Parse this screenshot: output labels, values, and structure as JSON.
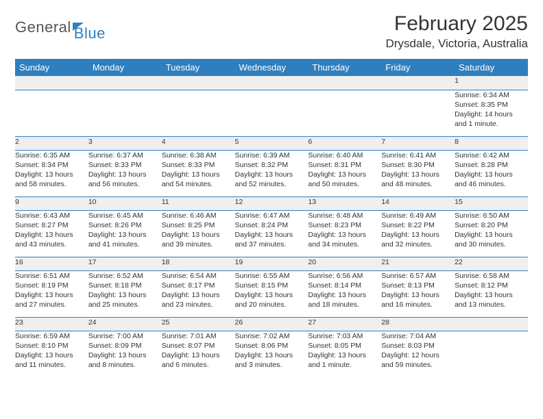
{
  "logo": {
    "part1": "General",
    "part2": "Blue"
  },
  "title": "February 2025",
  "location": "Drysdale, Victoria, Australia",
  "colors": {
    "header_bg": "#2f7fbf",
    "header_text": "#ffffff",
    "daynum_bg": "#efefef",
    "border": "#2f7fbf",
    "page_bg": "#ffffff",
    "text": "#333333"
  },
  "day_headers": [
    "Sunday",
    "Monday",
    "Tuesday",
    "Wednesday",
    "Thursday",
    "Friday",
    "Saturday"
  ],
  "weeks": [
    [
      {
        "num": "",
        "lines": []
      },
      {
        "num": "",
        "lines": []
      },
      {
        "num": "",
        "lines": []
      },
      {
        "num": "",
        "lines": []
      },
      {
        "num": "",
        "lines": []
      },
      {
        "num": "",
        "lines": []
      },
      {
        "num": "1",
        "lines": [
          "Sunrise: 6:34 AM",
          "Sunset: 8:35 PM",
          "Daylight: 14 hours",
          "and 1 minute."
        ]
      }
    ],
    [
      {
        "num": "2",
        "lines": [
          "Sunrise: 6:35 AM",
          "Sunset: 8:34 PM",
          "Daylight: 13 hours",
          "and 58 minutes."
        ]
      },
      {
        "num": "3",
        "lines": [
          "Sunrise: 6:37 AM",
          "Sunset: 8:33 PM",
          "Daylight: 13 hours",
          "and 56 minutes."
        ]
      },
      {
        "num": "4",
        "lines": [
          "Sunrise: 6:38 AM",
          "Sunset: 8:33 PM",
          "Daylight: 13 hours",
          "and 54 minutes."
        ]
      },
      {
        "num": "5",
        "lines": [
          "Sunrise: 6:39 AM",
          "Sunset: 8:32 PM",
          "Daylight: 13 hours",
          "and 52 minutes."
        ]
      },
      {
        "num": "6",
        "lines": [
          "Sunrise: 6:40 AM",
          "Sunset: 8:31 PM",
          "Daylight: 13 hours",
          "and 50 minutes."
        ]
      },
      {
        "num": "7",
        "lines": [
          "Sunrise: 6:41 AM",
          "Sunset: 8:30 PM",
          "Daylight: 13 hours",
          "and 48 minutes."
        ]
      },
      {
        "num": "8",
        "lines": [
          "Sunrise: 6:42 AM",
          "Sunset: 8:28 PM",
          "Daylight: 13 hours",
          "and 46 minutes."
        ]
      }
    ],
    [
      {
        "num": "9",
        "lines": [
          "Sunrise: 6:43 AM",
          "Sunset: 8:27 PM",
          "Daylight: 13 hours",
          "and 43 minutes."
        ]
      },
      {
        "num": "10",
        "lines": [
          "Sunrise: 6:45 AM",
          "Sunset: 8:26 PM",
          "Daylight: 13 hours",
          "and 41 minutes."
        ]
      },
      {
        "num": "11",
        "lines": [
          "Sunrise: 6:46 AM",
          "Sunset: 8:25 PM",
          "Daylight: 13 hours",
          "and 39 minutes."
        ]
      },
      {
        "num": "12",
        "lines": [
          "Sunrise: 6:47 AM",
          "Sunset: 8:24 PM",
          "Daylight: 13 hours",
          "and 37 minutes."
        ]
      },
      {
        "num": "13",
        "lines": [
          "Sunrise: 6:48 AM",
          "Sunset: 8:23 PM",
          "Daylight: 13 hours",
          "and 34 minutes."
        ]
      },
      {
        "num": "14",
        "lines": [
          "Sunrise: 6:49 AM",
          "Sunset: 8:22 PM",
          "Daylight: 13 hours",
          "and 32 minutes."
        ]
      },
      {
        "num": "15",
        "lines": [
          "Sunrise: 6:50 AM",
          "Sunset: 8:20 PM",
          "Daylight: 13 hours",
          "and 30 minutes."
        ]
      }
    ],
    [
      {
        "num": "16",
        "lines": [
          "Sunrise: 6:51 AM",
          "Sunset: 8:19 PM",
          "Daylight: 13 hours",
          "and 27 minutes."
        ]
      },
      {
        "num": "17",
        "lines": [
          "Sunrise: 6:52 AM",
          "Sunset: 8:18 PM",
          "Daylight: 13 hours",
          "and 25 minutes."
        ]
      },
      {
        "num": "18",
        "lines": [
          "Sunrise: 6:54 AM",
          "Sunset: 8:17 PM",
          "Daylight: 13 hours",
          "and 23 minutes."
        ]
      },
      {
        "num": "19",
        "lines": [
          "Sunrise: 6:55 AM",
          "Sunset: 8:15 PM",
          "Daylight: 13 hours",
          "and 20 minutes."
        ]
      },
      {
        "num": "20",
        "lines": [
          "Sunrise: 6:56 AM",
          "Sunset: 8:14 PM",
          "Daylight: 13 hours",
          "and 18 minutes."
        ]
      },
      {
        "num": "21",
        "lines": [
          "Sunrise: 6:57 AM",
          "Sunset: 8:13 PM",
          "Daylight: 13 hours",
          "and 16 minutes."
        ]
      },
      {
        "num": "22",
        "lines": [
          "Sunrise: 6:58 AM",
          "Sunset: 8:12 PM",
          "Daylight: 13 hours",
          "and 13 minutes."
        ]
      }
    ],
    [
      {
        "num": "23",
        "lines": [
          "Sunrise: 6:59 AM",
          "Sunset: 8:10 PM",
          "Daylight: 13 hours",
          "and 11 minutes."
        ]
      },
      {
        "num": "24",
        "lines": [
          "Sunrise: 7:00 AM",
          "Sunset: 8:09 PM",
          "Daylight: 13 hours",
          "and 8 minutes."
        ]
      },
      {
        "num": "25",
        "lines": [
          "Sunrise: 7:01 AM",
          "Sunset: 8:07 PM",
          "Daylight: 13 hours",
          "and 6 minutes."
        ]
      },
      {
        "num": "26",
        "lines": [
          "Sunrise: 7:02 AM",
          "Sunset: 8:06 PM",
          "Daylight: 13 hours",
          "and 3 minutes."
        ]
      },
      {
        "num": "27",
        "lines": [
          "Sunrise: 7:03 AM",
          "Sunset: 8:05 PM",
          "Daylight: 13 hours",
          "and 1 minute."
        ]
      },
      {
        "num": "28",
        "lines": [
          "Sunrise: 7:04 AM",
          "Sunset: 8:03 PM",
          "Daylight: 12 hours",
          "and 59 minutes."
        ]
      },
      {
        "num": "",
        "lines": []
      }
    ]
  ]
}
